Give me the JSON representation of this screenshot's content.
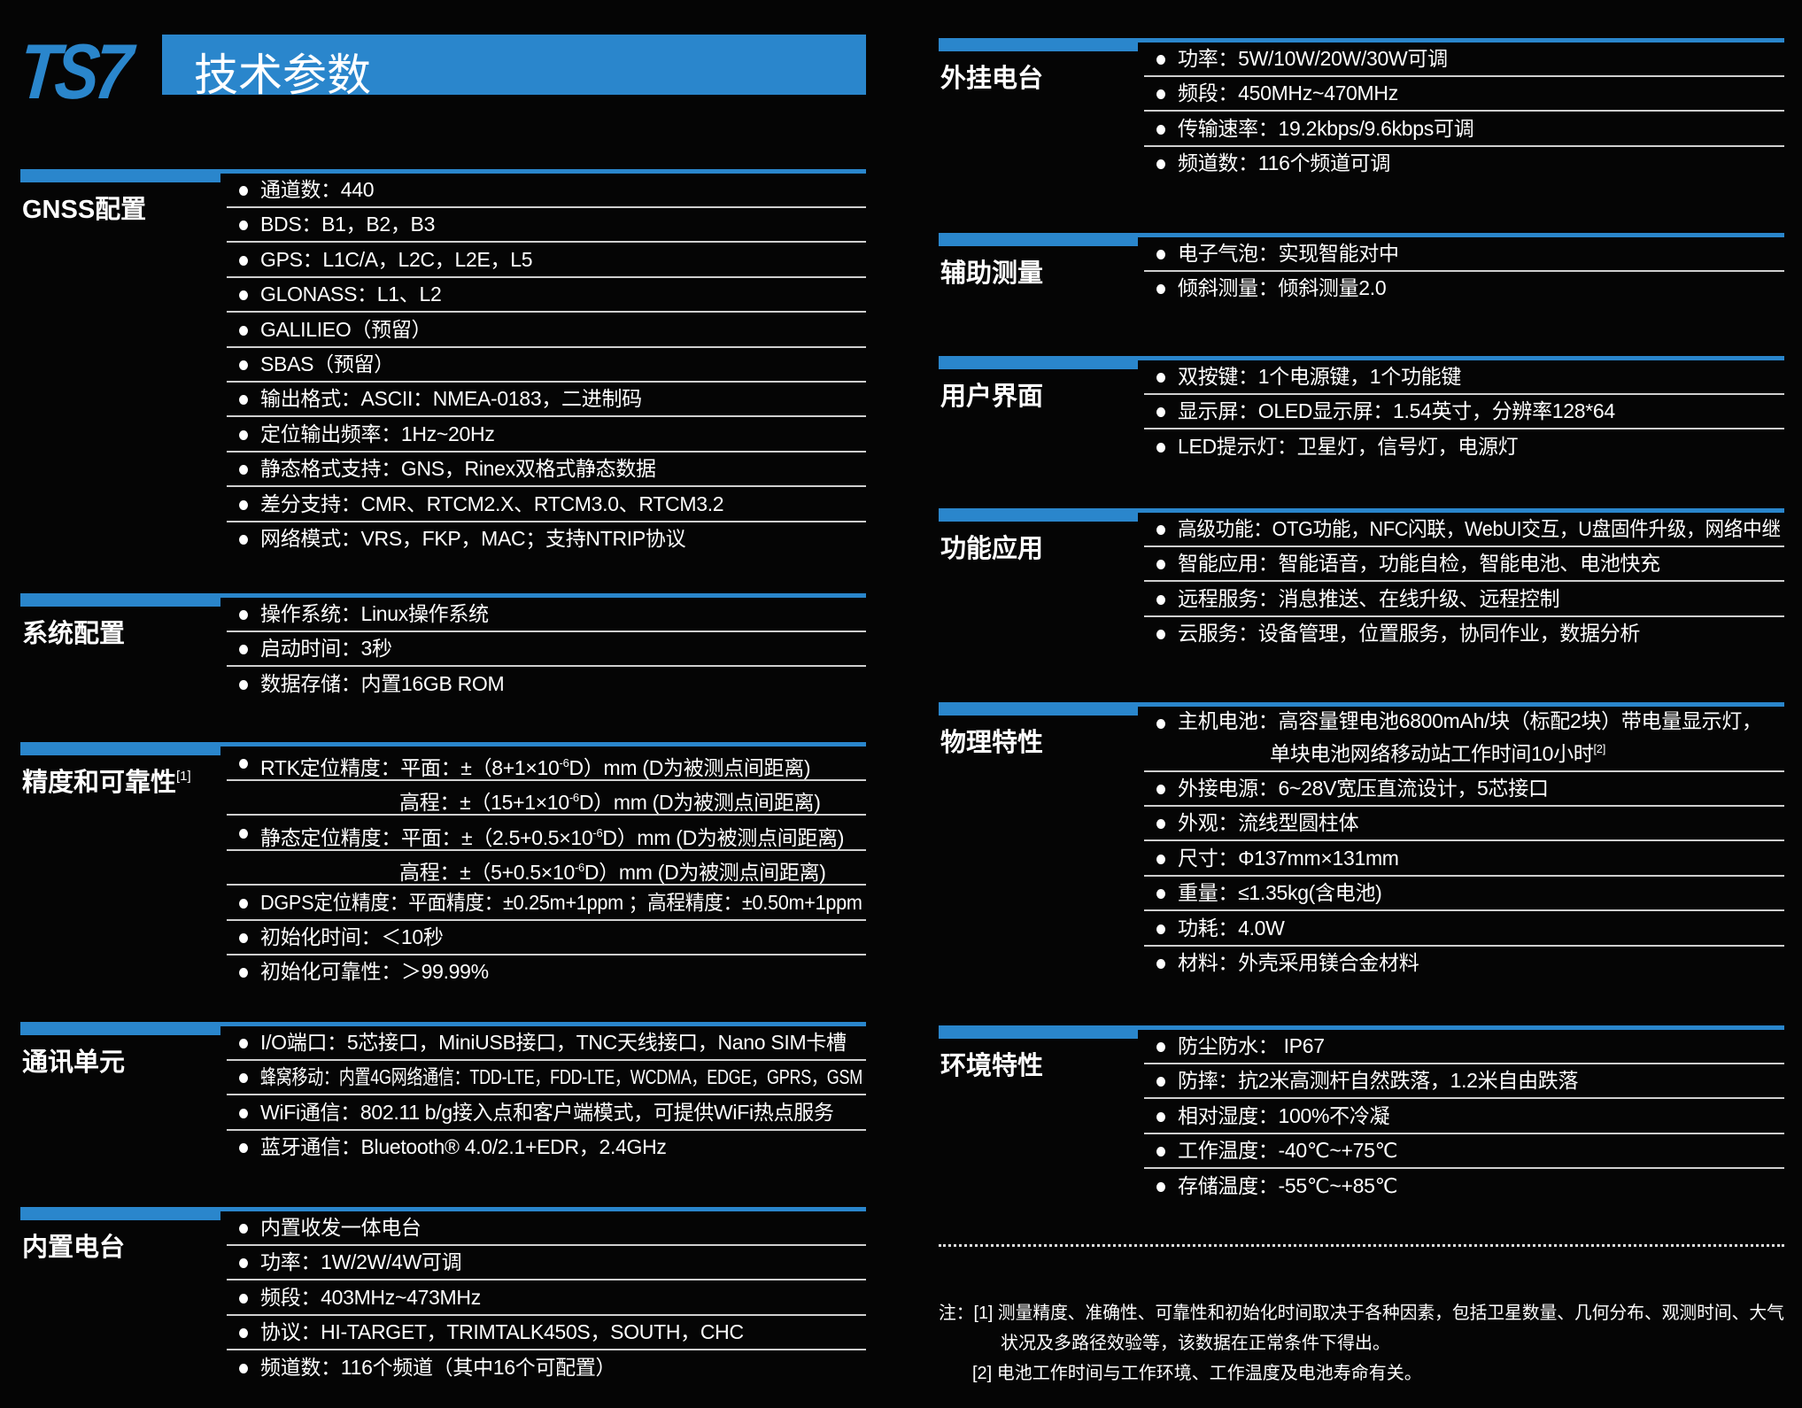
{
  "header": {
    "logo": "TS7",
    "title": "技术参数"
  },
  "colors": {
    "accent": "#2a86cc",
    "background": "#050505",
    "text": "#ffffff"
  },
  "left_sections": [
    {
      "label": "GNSS配置",
      "items": [
        {
          "text": "通道数：440"
        },
        {
          "text": "BDS：B1，B2，B3"
        },
        {
          "text": "GPS：L1C/A，L2C，L2E，L5"
        },
        {
          "text": "GLONASS：L1、L2"
        },
        {
          "text": "GALILIEO（预留）"
        },
        {
          "text": "SBAS（预留）"
        },
        {
          "text": "输出格式：ASCII：NMEA-0183，二进制码"
        },
        {
          "text": "定位输出频率：1Hz~20Hz"
        },
        {
          "text": "静态格式支持：GNS，Rinex双格式静态数据"
        },
        {
          "text": "差分支持：CMR、RTCM2.X、RTCM3.0、RTCM3.2"
        },
        {
          "text": "网络模式：VRS，FKP，MAC；支持NTRIP协议"
        }
      ]
    },
    {
      "label": "系统配置",
      "items": [
        {
          "text": "操作系统：Linux操作系统"
        },
        {
          "text": "启动时间：3秒"
        },
        {
          "text": "数据存储：内置16GB ROM"
        }
      ]
    },
    {
      "label": "精度和可靠性",
      "label_sup": "[1]",
      "items": [
        {
          "text": "RTK定位精度：平面：±（8+1×10",
          "sup": "-6",
          "post": "D）mm (D为被测点间距离)"
        },
        {
          "text": "高程：±（15+1×10",
          "sup": "-6",
          "post": "D）mm (D为被测点间距离)",
          "continuation": true
        },
        {
          "text": "静态定位精度：平面：±（2.5+0.5×10",
          "sup": "-6",
          "post": "D）mm (D为被测点间距离)"
        },
        {
          "text": "高程：±（5+0.5×10",
          "sup": "-6",
          "post": "D）mm (D为被测点间距离)",
          "continuation": true
        },
        {
          "text": "DGPS定位精度：平面精度：±0.25m+1ppm ；高程精度：±0.50m+1ppm"
        },
        {
          "text": "初始化时间：＜10秒"
        },
        {
          "text": "初始化可靠性：＞99.99%"
        }
      ]
    },
    {
      "label": "通讯单元",
      "items": [
        {
          "text": "I/O端口：5芯接口，MiniUSB接口，TNC天线接口，Nano SIM卡槽"
        },
        {
          "text": "蜂窝移动：内置4G网络通信：TDD-LTE，FDD-LTE，WCDMA，EDGE，GPRS，GSM"
        },
        {
          "text": "WiFi通信：802.11 b/g接入点和客户端模式，可提供WiFi热点服务"
        },
        {
          "text": "蓝牙通信：Bluetooth® 4.0/2.1+EDR，2.4GHz"
        }
      ]
    },
    {
      "label": "内置电台",
      "items": [
        {
          "text": "内置收发一体电台"
        },
        {
          "text": "功率：1W/2W/4W可调"
        },
        {
          "text": "频段：403MHz~473MHz"
        },
        {
          "text": "协议：HI-TARGET，TRIMTALK450S，SOUTH，CHC"
        },
        {
          "text": "频道数：116个频道（其中16个可配置）"
        }
      ]
    }
  ],
  "right_sections": [
    {
      "label": "外挂电台",
      "items": [
        {
          "text": "功率：5W/10W/20W/30W可调"
        },
        {
          "text": "频段：450MHz~470MHz"
        },
        {
          "text": "传输速率：19.2kbps/9.6kbps可调"
        },
        {
          "text": "频道数：116个频道可调"
        }
      ]
    },
    {
      "label": "辅助测量",
      "items": [
        {
          "text": "电子气泡：实现智能对中"
        },
        {
          "text": "倾斜测量：倾斜测量2.0"
        }
      ]
    },
    {
      "label": "用户界面",
      "items": [
        {
          "text": "双按键：1个电源键，1个功能键"
        },
        {
          "text": "显示屏：OLED显示屏：1.54英寸，分辨率128*64"
        },
        {
          "text": "LED提示灯：卫星灯，信号灯，电源灯"
        }
      ]
    },
    {
      "label": "功能应用",
      "items": [
        {
          "text": "高级功能：OTG功能，NFC闪联，WebUI交互，U盘固件升级，网络中继"
        },
        {
          "text": "智能应用：智能语音，功能自检，智能电池、电池快充"
        },
        {
          "text": "远程服务：消息推送、在线升级、远程控制"
        },
        {
          "text": "云服务：设备管理，位置服务，协同作业，数据分析"
        }
      ]
    },
    {
      "label": "物理特性",
      "items": [
        {
          "text": "主机电池：高容量锂电池6800mAh/块（标配2块）带电量显示灯，",
          "line2": "单块电池网络移动站工作时间10小时",
          "line2_sup": "[2]"
        },
        {
          "text": "外接电源：6~28V宽压直流设计，5芯接口"
        },
        {
          "text": "外观：流线型圆柱体"
        },
        {
          "text": "尺寸：Φ137mm×131mm"
        },
        {
          "text": "重量：≤1.35kg(含电池)"
        },
        {
          "text": "功耗：4.0W"
        },
        {
          "text": "材料：外壳采用镁合金材料"
        }
      ]
    },
    {
      "label": "环境特性",
      "items": [
        {
          "text": "防尘防水： IP67"
        },
        {
          "text": "防摔：抗2米高测杆自然跌落，1.2米自由跌落"
        },
        {
          "text": "相对湿度：100%不冷凝"
        },
        {
          "text": "工作温度：-40℃~+75℃"
        },
        {
          "text": "存储温度：-55℃~+85℃"
        }
      ]
    }
  ],
  "notes": {
    "line1": "注：[1] 测量精度、准确性、可靠性和初始化时间取决于各种因素，包括卫星数量、几何分布、观测时间、大气",
    "line2": "状况及多路径效验等，该数据在正常条件下得出。",
    "line3": "[2] 电池工作时间与工作环境、工作温度及电池寿命有关。"
  }
}
